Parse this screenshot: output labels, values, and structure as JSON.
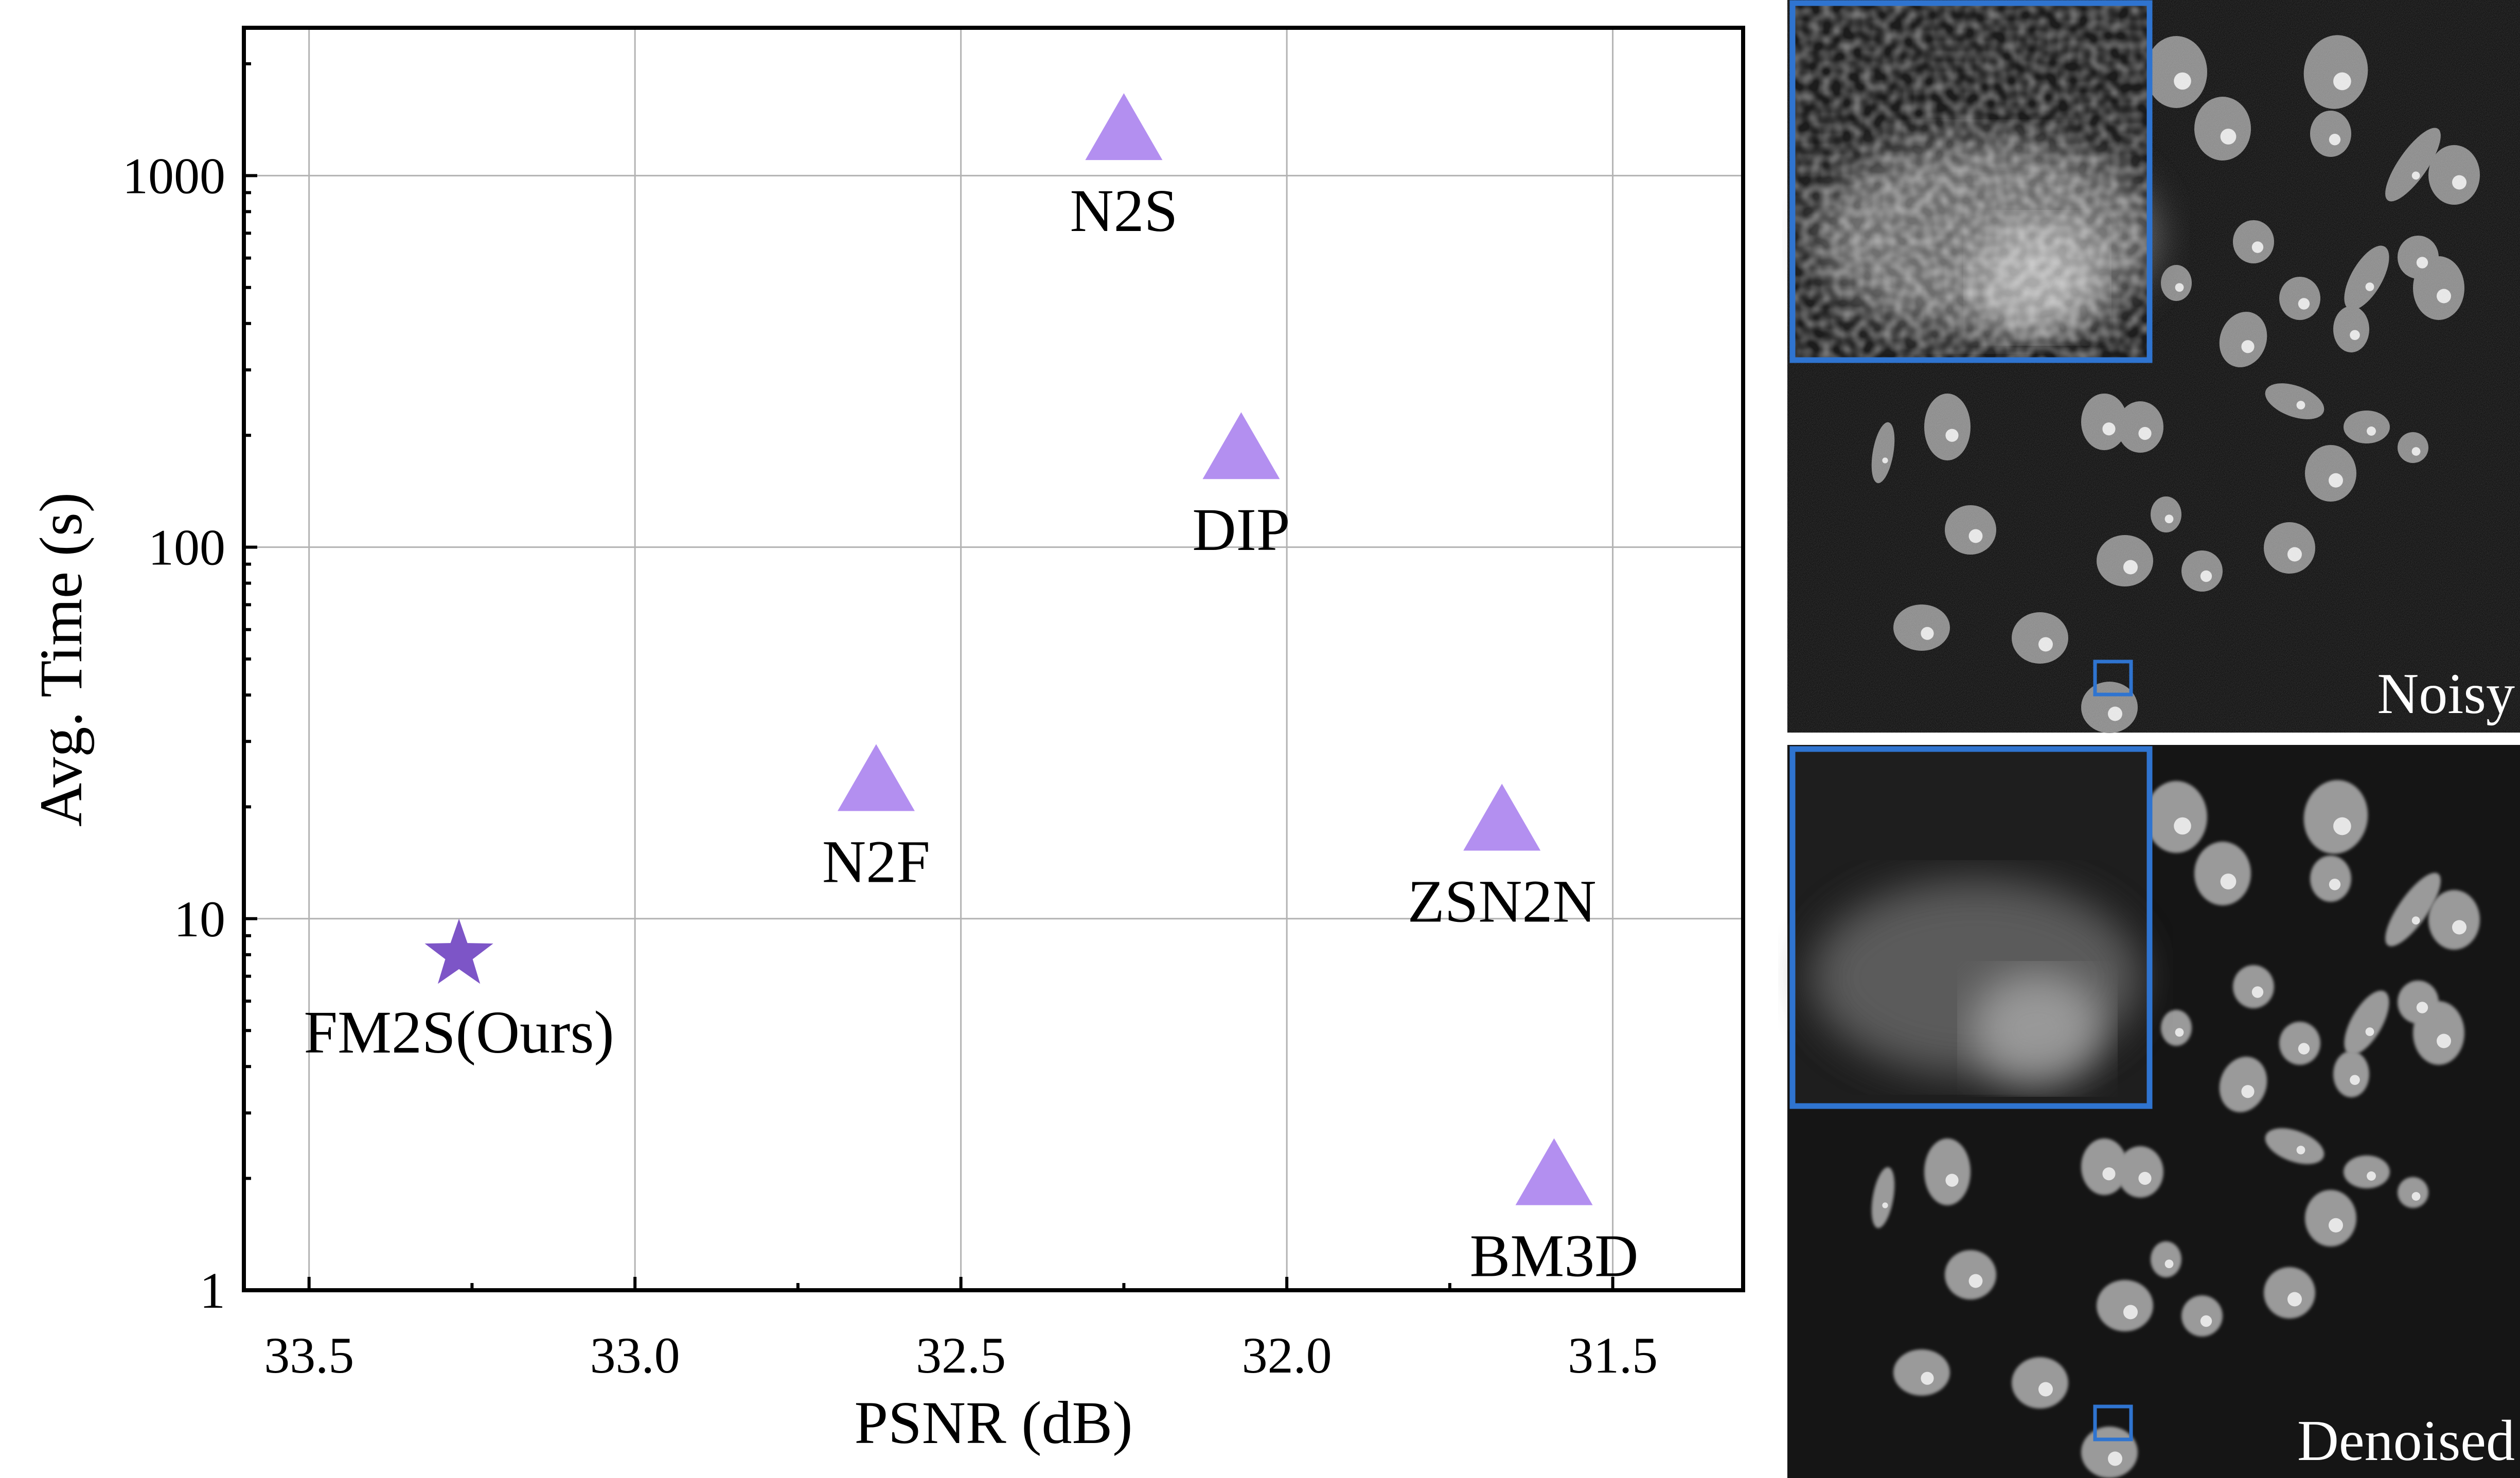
{
  "chart_data": {
    "type": "scatter",
    "xlabel": "PSNR (dB)",
    "ylabel": "Avg. Time (s)",
    "x_reversed": true,
    "y_scale": "log",
    "xlim": [
      33.6,
      31.3
    ],
    "ylim": [
      1,
      2500
    ],
    "x_ticks": [
      "33.5",
      "33.0",
      "32.5",
      "32.0",
      "31.5"
    ],
    "x_tick_values": [
      33.5,
      33.0,
      32.5,
      32.0,
      31.5
    ],
    "y_ticks": [
      "1",
      "10",
      "100",
      "1000"
    ],
    "y_tick_values": [
      1,
      10,
      100,
      1000
    ],
    "grid": true,
    "points": [
      {
        "label": "N2S",
        "x": 32.25,
        "y": 1300,
        "marker": "triangle",
        "color": "#b38ff0"
      },
      {
        "label": "DIP",
        "x": 32.07,
        "y": 180,
        "marker": "triangle",
        "color": "#b38ff0"
      },
      {
        "label": "N2F",
        "x": 32.63,
        "y": 23,
        "marker": "triangle",
        "color": "#b38ff0"
      },
      {
        "label": "ZSN2N",
        "x": 31.67,
        "y": 18,
        "marker": "triangle",
        "color": "#b38ff0"
      },
      {
        "label": "FM2S(Ours)",
        "x": 33.27,
        "y": 8,
        "marker": "star",
        "color": "#7d55c7"
      },
      {
        "label": "BM3D",
        "x": 31.59,
        "y": 2,
        "marker": "triangle",
        "color": "#b38ff0"
      }
    ]
  },
  "panels": {
    "noisy_caption": "Noisy",
    "denoised_caption": "Denoised",
    "inset_border_color": "#2f74d0"
  }
}
